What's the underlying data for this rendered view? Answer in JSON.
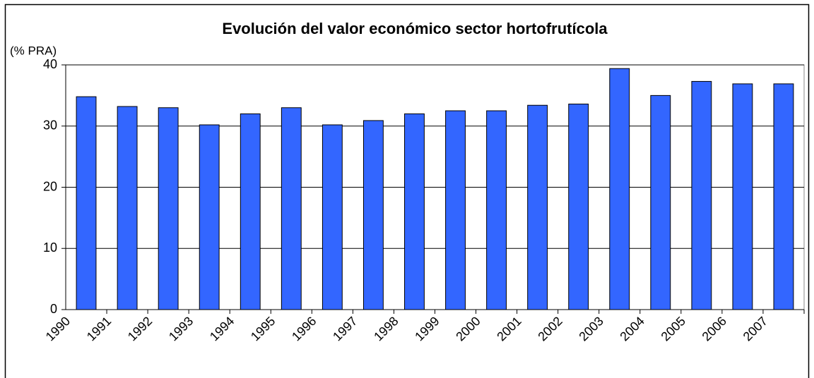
{
  "chart_data": {
    "type": "bar",
    "title": "Evolución del valor económico sector hortofrutícola",
    "y_label": "(% PRA)",
    "categories": [
      "1990",
      "1991",
      "1992",
      "1993",
      "1994",
      "1995",
      "1996",
      "1997",
      "1998",
      "1999",
      "2000",
      "2001",
      "2002",
      "2003",
      "2004",
      "2005",
      "2006",
      "2007"
    ],
    "values": [
      34.8,
      33.2,
      33.0,
      30.2,
      32.0,
      33.0,
      30.2,
      30.9,
      32.0,
      32.5,
      32.5,
      33.4,
      33.6,
      39.4,
      35.0,
      37.3,
      36.9,
      36.9
    ],
    "color": "#3366ff",
    "ylim": [
      0,
      40
    ],
    "yticks": [
      0,
      10,
      20,
      30,
      40
    ],
    "grid": true
  }
}
